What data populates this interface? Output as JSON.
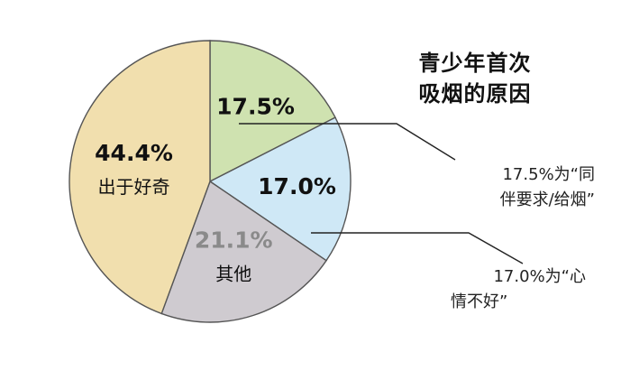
{
  "chart_data": {
    "type": "pie",
    "title_lines": [
      "青少年首次",
      "吸烟的原因"
    ],
    "slices": [
      {
        "value_label": "17.5%",
        "label": "",
        "value": 17.5,
        "color": "#cfe2b0",
        "label_color": "#111111"
      },
      {
        "value_label": "17.0%",
        "label": "",
        "value": 17.0,
        "color": "#cfe8f6",
        "label_color": "#111111"
      },
      {
        "value_label": "21.1%",
        "label": "其他",
        "value": 21.1,
        "color": "#cfcbd0",
        "label_color": "#8a8a8a"
      },
      {
        "value_label": "44.4%",
        "label": "出于好奇",
        "value": 44.4,
        "color": "#f1dfae",
        "label_color": "#111111"
      }
    ],
    "annotations": [
      {
        "lines": [
          "17.5%为“同",
          "伴要求/给烟”"
        ]
      },
      {
        "lines": [
          "17.0%为“心",
          "情不好”"
        ]
      }
    ]
  }
}
